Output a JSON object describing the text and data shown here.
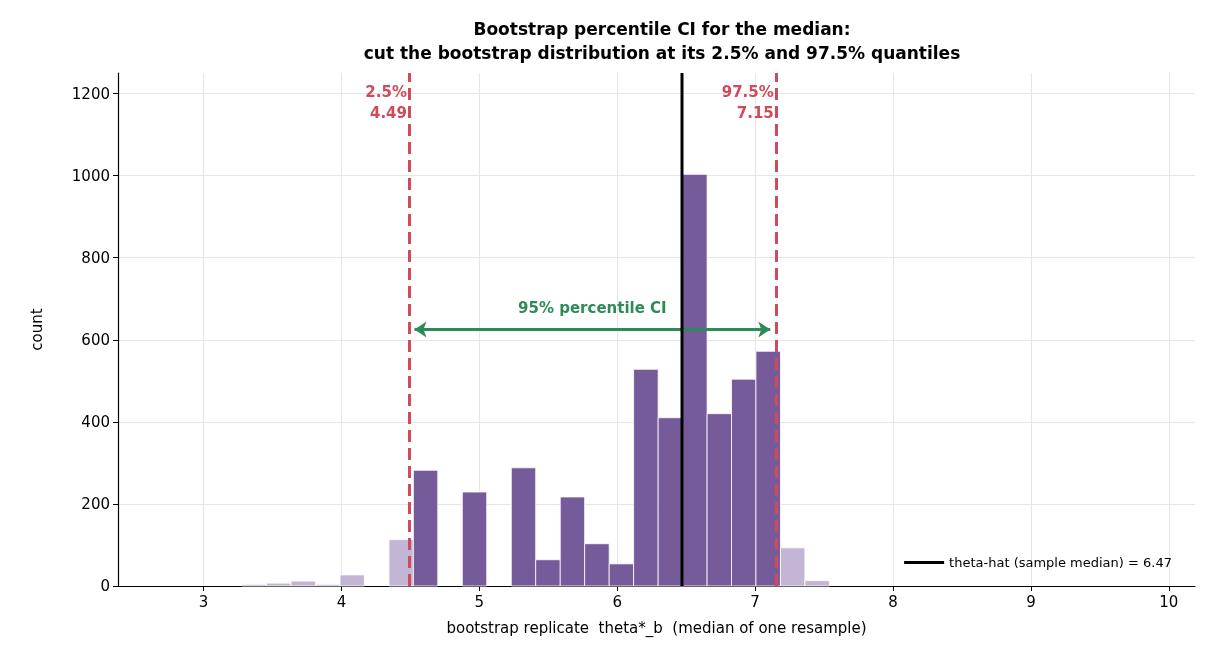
{
  "chart_data": {
    "type": "histogram",
    "title": "Bootstrap percentile CI for the median:\ncut the bootstrap distribution at its 2.5% and 97.5% quantiles",
    "xlabel": "bootstrap replicate  theta*_b  (median of one resample)",
    "ylabel": "count",
    "bins": [
      3.28,
      3.457,
      3.635,
      3.812,
      3.99,
      4.167,
      4.345,
      4.522,
      4.699,
      4.877,
      5.054,
      5.232,
      5.409,
      5.587,
      5.764,
      5.942,
      6.119,
      6.297,
      6.474,
      6.652,
      6.829,
      7.006,
      7.184,
      7.361,
      7.539
    ],
    "values": [
      4,
      7,
      12,
      4,
      27,
      0,
      113,
      282,
      0,
      229,
      0,
      288,
      64,
      217,
      103,
      54,
      528,
      410,
      1003,
      420,
      504,
      572,
      93,
      13
    ],
    "colors": [
      "#c3b6d4",
      "#c3b6d4",
      "#c3b6d4",
      "#c3b6d4",
      "#c3b6d4",
      "#c3b6d4",
      "#c3b6d4",
      "#765b9a",
      "#765b9a",
      "#765b9a",
      "#765b9a",
      "#765b9a",
      "#765b9a",
      "#765b9a",
      "#765b9a",
      "#765b9a",
      "#765b9a",
      "#765b9a",
      "#765b9a",
      "#765b9a",
      "#765b9a",
      "#765b9a",
      "#c3b6d4",
      "#c3b6d4"
    ],
    "series": [
      {
        "type": "line",
        "name": "theta-hat (sample median) = 6.47",
        "color": "#000000",
        "x": [
          6.47,
          6.47
        ],
        "values": [
          0,
          1250
        ]
      }
    ],
    "ref_lines": [
      {
        "axis": "x",
        "value": 4.49,
        "label": "2.5%\n4.49",
        "color": "#d1495b",
        "line_style": "dashed"
      },
      {
        "axis": "x",
        "value": 7.15,
        "label": "97.5%\n7.15",
        "color": "#d1495b",
        "line_style": "dashed"
      }
    ],
    "annotations": [
      "95% percentile CI"
    ],
    "xlim": [
      2.38,
      10.19
    ],
    "xticks": [
      3,
      4,
      5,
      6,
      7,
      8,
      9,
      10
    ],
    "ylim": [
      0,
      1250
    ],
    "yticks": [
      0,
      200,
      400,
      600,
      800,
      1000,
      1200
    ],
    "grid": true,
    "legend": "bottom right",
    "marker": "none"
  }
}
